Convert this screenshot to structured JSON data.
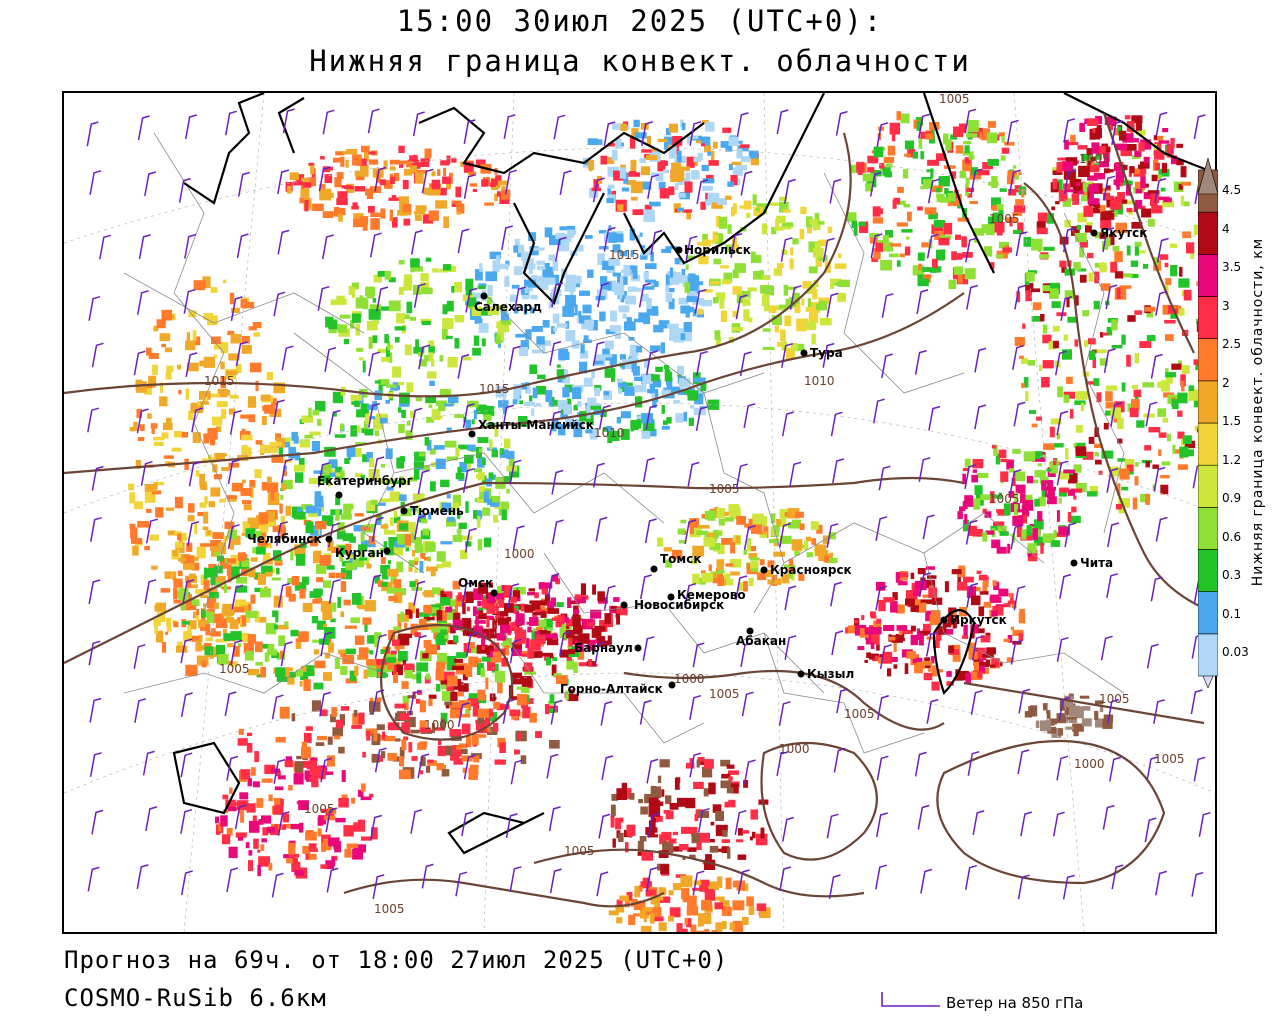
{
  "header": {
    "title_line1": "15:00 30июл 2025 (UTC+0):",
    "title_line2": "Нижняя граница конвект. облачности"
  },
  "footer": {
    "forecast": "Прогноз на 69ч. от 18:00 27июл 2025 (UTC+0)",
    "model": "COSMO-RuSib 6.6км",
    "wind_legend": "Ветер на 850 гПа"
  },
  "colorbar": {
    "title": "Нижняя граница конвект. облачности, км",
    "levels": [
      "0.03",
      "0.1",
      "0.3",
      "0.6",
      "0.9",
      "1.2",
      "1.5",
      "2",
      "2.5",
      "3",
      "3.5",
      "4",
      "4.5"
    ],
    "colors": [
      "#dcdcf5",
      "#aed6f5",
      "#4aa8ee",
      "#22c42a",
      "#8fe034",
      "#cde63c",
      "#f2d438",
      "#f0a828",
      "#ff7a2a",
      "#ff2e46",
      "#e8087a",
      "#b00a14",
      "#8f5a40",
      "#a0887c"
    ]
  },
  "cities": [
    {
      "name": "Салехард"
    },
    {
      "name": "Норильск"
    },
    {
      "name": "Тура"
    },
    {
      "name": "Якутск"
    },
    {
      "name": "Ханты-Мансийск"
    },
    {
      "name": "Екатеринбург"
    },
    {
      "name": "Тюмень"
    },
    {
      "name": "Челябинск"
    },
    {
      "name": "Курган"
    },
    {
      "name": "Омск"
    },
    {
      "name": "Новосибирск"
    },
    {
      "name": "Томск"
    },
    {
      "name": "Кемерово"
    },
    {
      "name": "Красноярск"
    },
    {
      "name": "Абакан"
    },
    {
      "name": "Барнаул"
    },
    {
      "name": "Горно-Алтайск"
    },
    {
      "name": "Кызыл"
    },
    {
      "name": "Иркутск"
    },
    {
      "name": "Чита"
    }
  ],
  "isobar_labels": [
    "1005",
    "1005",
    "1005",
    "1015",
    "1015",
    "1015",
    "1010",
    "1010",
    "1000",
    "1005",
    "1005",
    "1000",
    "1005",
    "1000",
    "1005",
    "1005",
    "1000",
    "1005",
    "1005",
    "1000",
    "1005",
    "1005",
    "1005"
  ]
}
